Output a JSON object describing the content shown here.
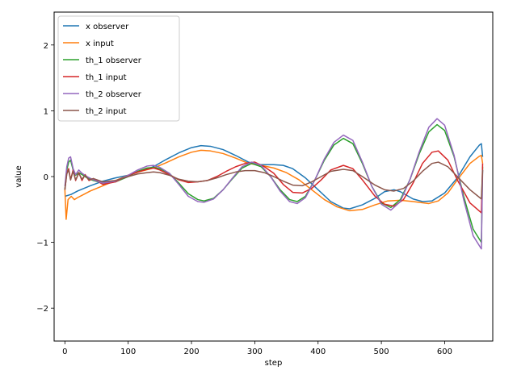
{
  "chart_data": {
    "type": "line",
    "xlabel": "step",
    "ylabel": "value",
    "xlim": [
      -17,
      676
    ],
    "ylim": [
      -2.5,
      2.5
    ],
    "xticks": [
      0,
      100,
      200,
      300,
      400,
      500,
      600
    ],
    "yticks": [
      -2,
      -1,
      0,
      1,
      2
    ],
    "legend_position": "upper-left",
    "grid": false,
    "series": [
      {
        "name": "x observer",
        "color": "#1f77b4",
        "points": [
          [
            0,
            -0.3
          ],
          [
            10,
            -0.27
          ],
          [
            20,
            -0.22
          ],
          [
            40,
            -0.14
          ],
          [
            60,
            -0.07
          ],
          [
            80,
            -0.02
          ],
          [
            100,
            0.02
          ],
          [
            120,
            0.08
          ],
          [
            140,
            0.15
          ],
          [
            160,
            0.26
          ],
          [
            180,
            0.36
          ],
          [
            200,
            0.44
          ],
          [
            215,
            0.47
          ],
          [
            230,
            0.46
          ],
          [
            250,
            0.41
          ],
          [
            270,
            0.32
          ],
          [
            290,
            0.22
          ],
          [
            310,
            0.18
          ],
          [
            330,
            0.18
          ],
          [
            345,
            0.17
          ],
          [
            360,
            0.12
          ],
          [
            380,
            -0.02
          ],
          [
            400,
            -0.2
          ],
          [
            420,
            -0.38
          ],
          [
            440,
            -0.48
          ],
          [
            450,
            -0.49
          ],
          [
            470,
            -0.43
          ],
          [
            490,
            -0.33
          ],
          [
            505,
            -0.23
          ],
          [
            520,
            -0.2
          ],
          [
            530,
            -0.23
          ],
          [
            550,
            -0.34
          ],
          [
            565,
            -0.38
          ],
          [
            580,
            -0.37
          ],
          [
            600,
            -0.25
          ],
          [
            620,
            -0.02
          ],
          [
            640,
            0.3
          ],
          [
            655,
            0.48
          ],
          [
            658,
            0.5
          ],
          [
            660,
            0.3
          ]
        ]
      },
      {
        "name": "x input",
        "color": "#ff7f0e",
        "points": [
          [
            0,
            -0.2
          ],
          [
            2,
            -0.65
          ],
          [
            5,
            -0.35
          ],
          [
            10,
            -0.3
          ],
          [
            15,
            -0.35
          ],
          [
            20,
            -0.32
          ],
          [
            30,
            -0.27
          ],
          [
            40,
            -0.22
          ],
          [
            60,
            -0.14
          ],
          [
            80,
            -0.06
          ],
          [
            100,
            0.02
          ],
          [
            120,
            0.08
          ],
          [
            140,
            0.13
          ],
          [
            160,
            0.21
          ],
          [
            180,
            0.3
          ],
          [
            200,
            0.37
          ],
          [
            215,
            0.4
          ],
          [
            230,
            0.39
          ],
          [
            250,
            0.35
          ],
          [
            270,
            0.28
          ],
          [
            290,
            0.2
          ],
          [
            310,
            0.17
          ],
          [
            330,
            0.13
          ],
          [
            350,
            0.06
          ],
          [
            370,
            -0.05
          ],
          [
            390,
            -0.2
          ],
          [
            410,
            -0.35
          ],
          [
            430,
            -0.46
          ],
          [
            450,
            -0.52
          ],
          [
            470,
            -0.5
          ],
          [
            490,
            -0.43
          ],
          [
            510,
            -0.37
          ],
          [
            530,
            -0.36
          ],
          [
            550,
            -0.38
          ],
          [
            575,
            -0.41
          ],
          [
            590,
            -0.37
          ],
          [
            605,
            -0.25
          ],
          [
            620,
            -0.05
          ],
          [
            640,
            0.2
          ],
          [
            655,
            0.31
          ],
          [
            658,
            0.32
          ],
          [
            660,
            0.2
          ]
        ]
      },
      {
        "name": "th_1 observer",
        "color": "#2ca02c",
        "points": [
          [
            0,
            -0.2
          ],
          [
            3,
            0.1
          ],
          [
            6,
            0.22
          ],
          [
            9,
            0.25
          ],
          [
            13,
            0.1
          ],
          [
            17,
            0.02
          ],
          [
            22,
            0.06
          ],
          [
            27,
            0.03
          ],
          [
            35,
            -0.02
          ],
          [
            45,
            -0.06
          ],
          [
            60,
            -0.1
          ],
          [
            80,
            -0.08
          ],
          [
            100,
            0.0
          ],
          [
            115,
            0.08
          ],
          [
            130,
            0.13
          ],
          [
            140,
            0.14
          ],
          [
            150,
            0.12
          ],
          [
            165,
            0.05
          ],
          [
            180,
            -0.1
          ],
          [
            195,
            -0.26
          ],
          [
            210,
            -0.35
          ],
          [
            220,
            -0.37
          ],
          [
            235,
            -0.33
          ],
          [
            250,
            -0.2
          ],
          [
            265,
            -0.03
          ],
          [
            280,
            0.13
          ],
          [
            295,
            0.2
          ],
          [
            310,
            0.15
          ],
          [
            325,
            0.0
          ],
          [
            340,
            -0.2
          ],
          [
            355,
            -0.35
          ],
          [
            367,
            -0.38
          ],
          [
            380,
            -0.3
          ],
          [
            395,
            -0.05
          ],
          [
            410,
            0.25
          ],
          [
            425,
            0.48
          ],
          [
            440,
            0.58
          ],
          [
            455,
            0.5
          ],
          [
            470,
            0.2
          ],
          [
            485,
            -0.15
          ],
          [
            500,
            -0.4
          ],
          [
            515,
            -0.47
          ],
          [
            530,
            -0.35
          ],
          [
            545,
            -0.05
          ],
          [
            560,
            0.35
          ],
          [
            575,
            0.68
          ],
          [
            588,
            0.79
          ],
          [
            600,
            0.7
          ],
          [
            615,
            0.3
          ],
          [
            630,
            -0.3
          ],
          [
            645,
            -0.8
          ],
          [
            658,
            -1.0
          ],
          [
            660,
            0.15
          ]
        ]
      },
      {
        "name": "th_1 input",
        "color": "#d62728",
        "points": [
          [
            0,
            -0.2
          ],
          [
            3,
            0.05
          ],
          [
            6,
            0.12
          ],
          [
            9,
            -0.05
          ],
          [
            13,
            0.1
          ],
          [
            17,
            -0.06
          ],
          [
            22,
            0.06
          ],
          [
            27,
            -0.06
          ],
          [
            32,
            0.03
          ],
          [
            38,
            -0.06
          ],
          [
            45,
            -0.03
          ],
          [
            60,
            -0.12
          ],
          [
            80,
            -0.08
          ],
          [
            100,
            0.02
          ],
          [
            115,
            0.07
          ],
          [
            130,
            0.11
          ],
          [
            140,
            0.13
          ],
          [
            150,
            0.1
          ],
          [
            165,
            0.03
          ],
          [
            180,
            -0.05
          ],
          [
            195,
            -0.09
          ],
          [
            210,
            -0.08
          ],
          [
            225,
            -0.06
          ],
          [
            240,
            0.0
          ],
          [
            255,
            0.08
          ],
          [
            270,
            0.15
          ],
          [
            285,
            0.2
          ],
          [
            300,
            0.22
          ],
          [
            315,
            0.15
          ],
          [
            330,
            0.05
          ],
          [
            345,
            -0.12
          ],
          [
            360,
            -0.24
          ],
          [
            375,
            -0.25
          ],
          [
            390,
            -0.18
          ],
          [
            405,
            -0.05
          ],
          [
            420,
            0.1
          ],
          [
            440,
            0.17
          ],
          [
            455,
            0.12
          ],
          [
            470,
            -0.05
          ],
          [
            490,
            -0.3
          ],
          [
            505,
            -0.42
          ],
          [
            520,
            -0.45
          ],
          [
            535,
            -0.35
          ],
          [
            550,
            -0.1
          ],
          [
            565,
            0.2
          ],
          [
            580,
            0.37
          ],
          [
            590,
            0.39
          ],
          [
            605,
            0.25
          ],
          [
            620,
            -0.05
          ],
          [
            640,
            -0.4
          ],
          [
            658,
            -0.55
          ],
          [
            660,
            0.2
          ]
        ]
      },
      {
        "name": "th_2 observer",
        "color": "#9467bd",
        "points": [
          [
            0,
            -0.15
          ],
          [
            3,
            0.15
          ],
          [
            6,
            0.28
          ],
          [
            9,
            0.3
          ],
          [
            13,
            0.12
          ],
          [
            17,
            0.03
          ],
          [
            22,
            0.1
          ],
          [
            27,
            0.05
          ],
          [
            35,
            0.0
          ],
          [
            45,
            -0.05
          ],
          [
            60,
            -0.1
          ],
          [
            80,
            -0.07
          ],
          [
            100,
            0.02
          ],
          [
            115,
            0.1
          ],
          [
            130,
            0.16
          ],
          [
            140,
            0.17
          ],
          [
            150,
            0.14
          ],
          [
            165,
            0.05
          ],
          [
            180,
            -0.12
          ],
          [
            195,
            -0.3
          ],
          [
            210,
            -0.38
          ],
          [
            220,
            -0.39
          ],
          [
            235,
            -0.34
          ],
          [
            250,
            -0.2
          ],
          [
            265,
            -0.02
          ],
          [
            280,
            0.15
          ],
          [
            295,
            0.22
          ],
          [
            310,
            0.17
          ],
          [
            325,
            0.0
          ],
          [
            340,
            -0.22
          ],
          [
            355,
            -0.38
          ],
          [
            367,
            -0.41
          ],
          [
            380,
            -0.32
          ],
          [
            395,
            -0.05
          ],
          [
            410,
            0.27
          ],
          [
            425,
            0.52
          ],
          [
            440,
            0.63
          ],
          [
            455,
            0.55
          ],
          [
            470,
            0.22
          ],
          [
            485,
            -0.15
          ],
          [
            500,
            -0.42
          ],
          [
            515,
            -0.51
          ],
          [
            530,
            -0.38
          ],
          [
            545,
            -0.05
          ],
          [
            560,
            0.38
          ],
          [
            575,
            0.75
          ],
          [
            588,
            0.88
          ],
          [
            600,
            0.78
          ],
          [
            615,
            0.32
          ],
          [
            630,
            -0.35
          ],
          [
            645,
            -0.9
          ],
          [
            658,
            -1.1
          ],
          [
            660,
            0.1
          ]
        ]
      },
      {
        "name": "th_2 input",
        "color": "#8c564b",
        "points": [
          [
            0,
            -0.2
          ],
          [
            3,
            0.04
          ],
          [
            6,
            0.1
          ],
          [
            9,
            -0.05
          ],
          [
            13,
            0.08
          ],
          [
            17,
            -0.05
          ],
          [
            22,
            0.05
          ],
          [
            27,
            -0.04
          ],
          [
            32,
            0.02
          ],
          [
            38,
            -0.05
          ],
          [
            45,
            -0.03
          ],
          [
            60,
            -0.08
          ],
          [
            80,
            -0.06
          ],
          [
            100,
            0.0
          ],
          [
            115,
            0.04
          ],
          [
            130,
            0.06
          ],
          [
            140,
            0.07
          ],
          [
            150,
            0.06
          ],
          [
            165,
            0.02
          ],
          [
            180,
            -0.04
          ],
          [
            195,
            -0.07
          ],
          [
            210,
            -0.08
          ],
          [
            225,
            -0.06
          ],
          [
            240,
            -0.02
          ],
          [
            255,
            0.03
          ],
          [
            270,
            0.07
          ],
          [
            285,
            0.09
          ],
          [
            300,
            0.09
          ],
          [
            315,
            0.06
          ],
          [
            330,
            0.0
          ],
          [
            345,
            -0.07
          ],
          [
            360,
            -0.13
          ],
          [
            375,
            -0.14
          ],
          [
            390,
            -0.08
          ],
          [
            405,
            0.0
          ],
          [
            420,
            0.08
          ],
          [
            440,
            0.11
          ],
          [
            455,
            0.09
          ],
          [
            470,
            0.0
          ],
          [
            490,
            -0.13
          ],
          [
            505,
            -0.2
          ],
          [
            520,
            -0.22
          ],
          [
            535,
            -0.18
          ],
          [
            550,
            -0.07
          ],
          [
            565,
            0.08
          ],
          [
            580,
            0.2
          ],
          [
            590,
            0.22
          ],
          [
            605,
            0.15
          ],
          [
            620,
            0.0
          ],
          [
            640,
            -0.2
          ],
          [
            658,
            -0.34
          ],
          [
            660,
            0.1
          ]
        ]
      }
    ]
  }
}
